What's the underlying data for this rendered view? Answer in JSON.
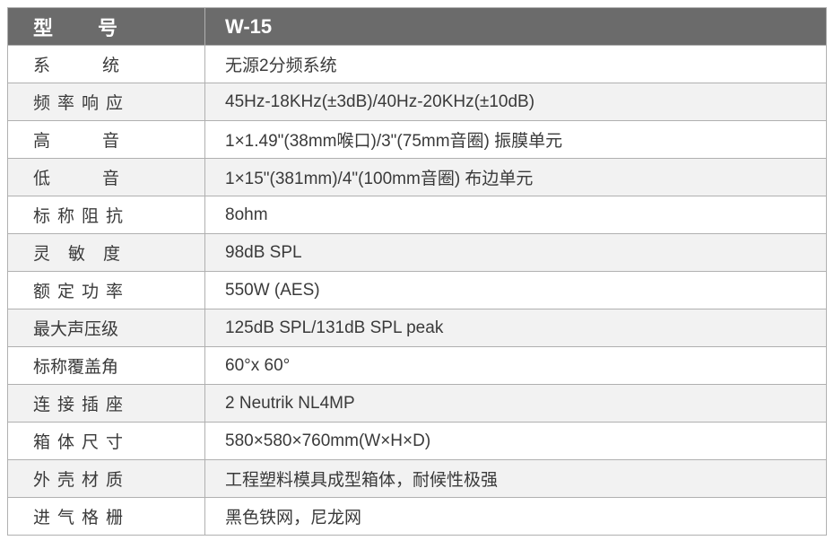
{
  "table": {
    "header_label": "型号",
    "header_value": "W-15",
    "colors": {
      "header_bg": "#6b6b6b",
      "header_text": "#ffffff",
      "row_bg": "#f2f2f2",
      "row_alt_bg": "#ffffff",
      "border": "#b0b0b0",
      "text": "#3a3a3a"
    },
    "font_size_header": 22,
    "font_size_body": 19,
    "label_col_width": 220,
    "rows": [
      {
        "label": "系统",
        "spacing": "ls2",
        "value": "无源2分频系统"
      },
      {
        "label": "频率响应",
        "spacing": "ls4",
        "value": "45Hz-18KHz(±3dB)/40Hz-20KHz(±10dB)"
      },
      {
        "label": "高音",
        "spacing": "ls2",
        "value": "1×1.49\"(38mm喉口)/3\"(75mm音圈) 振膜单元"
      },
      {
        "label": "低音",
        "spacing": "ls2",
        "value": "1×15\"(381mm)/4\"(100mm音圈) 布边单元"
      },
      {
        "label": "标称阻抗",
        "spacing": "ls4",
        "value": "8ohm"
      },
      {
        "label": "灵敏度",
        "spacing": "ls3",
        "value": "98dB SPL"
      },
      {
        "label": "额定功率",
        "spacing": "ls4",
        "value": "550W (AES)"
      },
      {
        "label": "最大声压级",
        "spacing": "ls5",
        "value": "125dB SPL/131dB SPL peak"
      },
      {
        "label": "标称覆盖角",
        "spacing": "ls5",
        "value": "60°x 60°"
      },
      {
        "label": "连接插座",
        "spacing": "ls4",
        "value": "2 Neutrik NL4MP"
      },
      {
        "label": "箱体尺寸",
        "spacing": "ls4",
        "value": "580×580×760mm(W×H×D)"
      },
      {
        "label": "外壳材质",
        "spacing": "ls4",
        "value": "工程塑料模具成型箱体，耐候性极强"
      },
      {
        "label": "进气格栅",
        "spacing": "ls4",
        "value": "黑色铁网，尼龙网"
      }
    ]
  }
}
